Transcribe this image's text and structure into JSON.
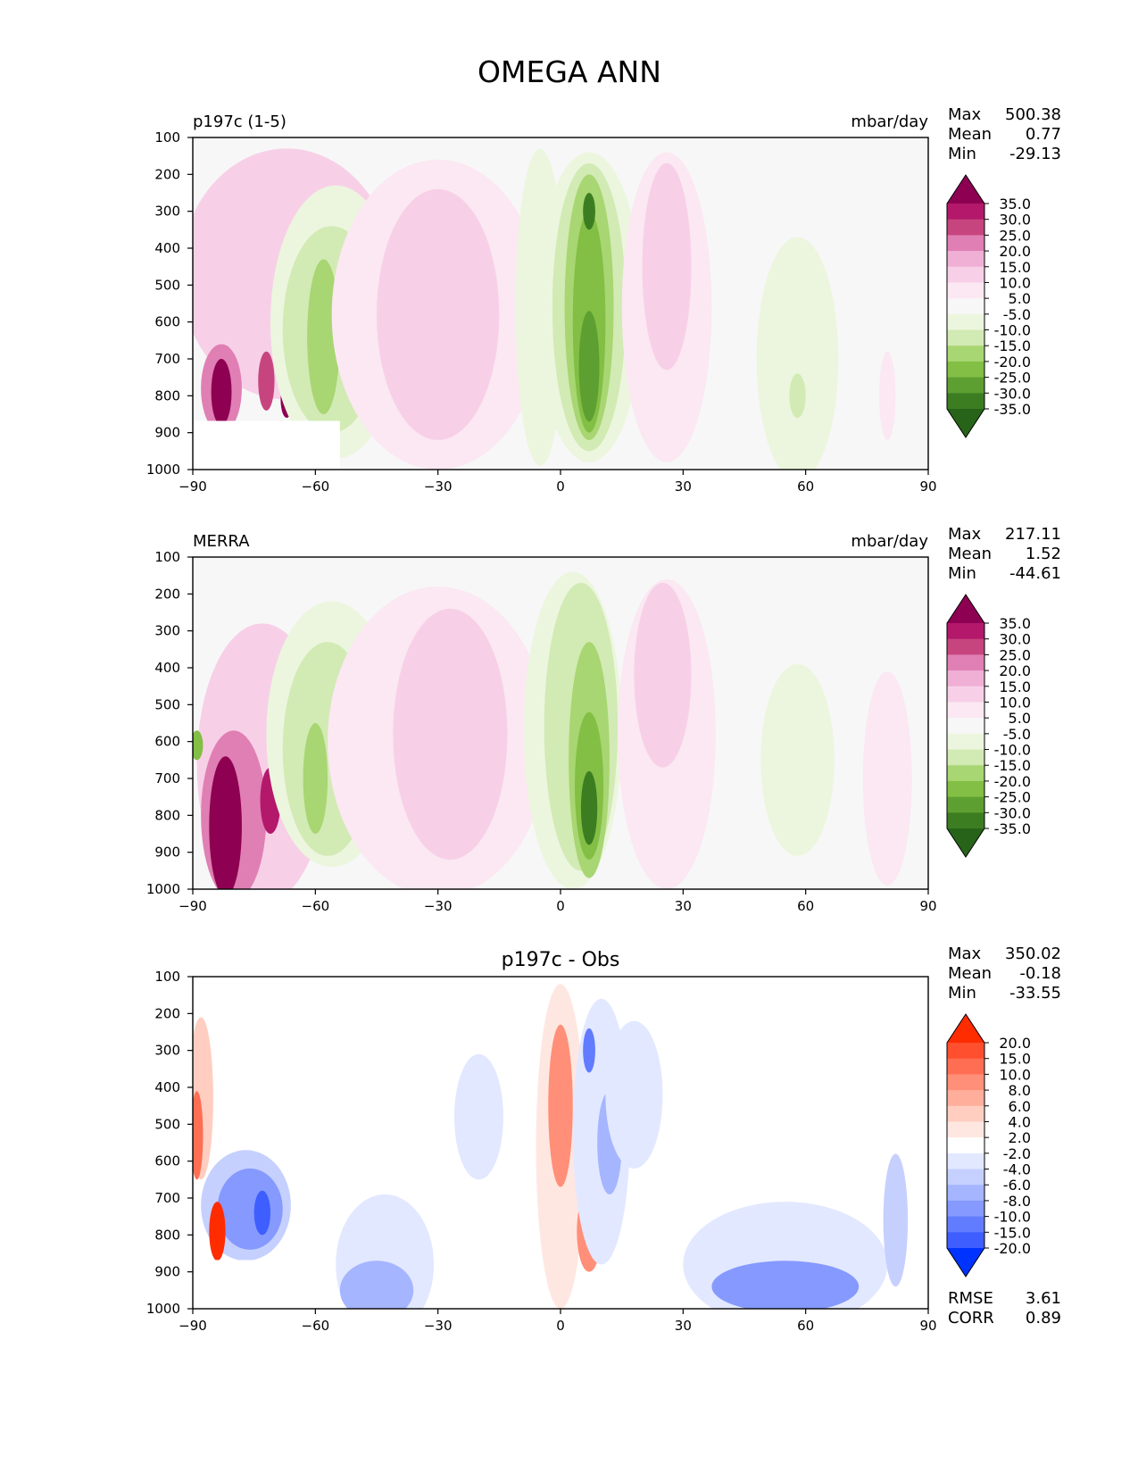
{
  "title": "OMEGA ANN",
  "chart_data": [
    {
      "type": "heatmap",
      "panel_label": "p197c (1-5)",
      "units": "mbar/day",
      "xlim": [
        -90,
        90
      ],
      "ylim": [
        1000,
        100
      ],
      "xticks": [
        -90,
        -60,
        -30,
        0,
        30,
        60,
        90
      ],
      "xtick_labels": [
        "−90",
        "−60",
        "−30",
        "0",
        "30",
        "60",
        "90"
      ],
      "yticks": [
        100,
        200,
        300,
        400,
        500,
        600,
        700,
        800,
        900,
        1000
      ],
      "ytick_labels": [
        "100",
        "200",
        "300",
        "400",
        "500",
        "600",
        "700",
        "800",
        "900",
        "1000"
      ],
      "stats": {
        "max_label": "Max",
        "max": "500.38",
        "mean_label": "Mean",
        "mean": "0.77",
        "min_label": "Min",
        "min": "-29.13"
      },
      "colorbar": {
        "labels": [
          "35.0",
          "30.0",
          "25.0",
          "20.0",
          "15.0",
          "10.0",
          "5.0",
          "-5.0",
          "-10.0",
          "-15.0",
          "-20.0",
          "-25.0",
          "-30.0",
          "-35.0"
        ],
        "colors": [
          "#8e0152",
          "#b3186b",
          "#c7457e",
          "#e07fb3",
          "#f0b0d5",
          "#f7d0e8",
          "#fbe8f2",
          "#f7f7f7",
          "#ecf6de",
          "#d2eab4",
          "#a8d672",
          "#82bf44",
          "#5e9f31",
          "#3d7d22",
          "#276419"
        ]
      },
      "blobs": [
        {
          "lon": -67,
          "p": 470,
          "rx": 26,
          "ry": 340,
          "c": "#f7d0e8"
        },
        {
          "lon": -83,
          "p": 780,
          "rx": 5,
          "ry": 120,
          "c": "#e07fb3"
        },
        {
          "lon": -83,
          "p": 790,
          "rx": 2.5,
          "ry": 90,
          "c": "#8e0152"
        },
        {
          "lon": -72,
          "p": 760,
          "rx": 2,
          "ry": 80,
          "c": "#c7457e"
        },
        {
          "lon": -67,
          "p": 810,
          "rx": 1.5,
          "ry": 50,
          "c": "#8e0152"
        },
        {
          "lon": -55,
          "p": 600,
          "rx": 16,
          "ry": 370,
          "c": "#ecf6de"
        },
        {
          "lon": -56,
          "p": 620,
          "rx": 12,
          "ry": 280,
          "c": "#d2eab4"
        },
        {
          "lon": -58,
          "p": 640,
          "rx": 4,
          "ry": 210,
          "c": "#a8d672"
        },
        {
          "lon": -30,
          "p": 580,
          "rx": 26,
          "ry": 420,
          "c": "#fbe8f2"
        },
        {
          "lon": -30,
          "p": 580,
          "rx": 15,
          "ry": 340,
          "c": "#f7d0e8"
        },
        {
          "lon": -5,
          "p": 560,
          "rx": 6,
          "ry": 430,
          "c": "#ecf6de"
        },
        {
          "lon": 7,
          "p": 560,
          "rx": 13,
          "ry": 420,
          "c": "#ecf6de"
        },
        {
          "lon": 7,
          "p": 560,
          "rx": 9,
          "ry": 390,
          "c": "#d2eab4"
        },
        {
          "lon": 7,
          "p": 560,
          "rx": 6,
          "ry": 360,
          "c": "#a8d672"
        },
        {
          "lon": 7,
          "p": 600,
          "rx": 4,
          "ry": 300,
          "c": "#82bf44"
        },
        {
          "lon": 7,
          "p": 720,
          "rx": 2.5,
          "ry": 150,
          "c": "#5e9f31"
        },
        {
          "lon": 7,
          "p": 300,
          "rx": 1.5,
          "ry": 50,
          "c": "#3d7d22"
        },
        {
          "lon": 26,
          "p": 560,
          "rx": 11,
          "ry": 420,
          "c": "#fbe8f2"
        },
        {
          "lon": 26,
          "p": 450,
          "rx": 6,
          "ry": 280,
          "c": "#f7d0e8"
        },
        {
          "lon": 58,
          "p": 700,
          "rx": 10,
          "ry": 330,
          "c": "#ecf6de"
        },
        {
          "lon": 58,
          "p": 800,
          "rx": 2,
          "ry": 60,
          "c": "#d2eab4"
        },
        {
          "lon": 80,
          "p": 800,
          "rx": 2,
          "ry": 120,
          "c": "#fbe8f2"
        }
      ],
      "mask": {
        "lon": [
          -90,
          -54
        ],
        "p": [
          868,
          1000
        ],
        "c": "#ffffff"
      }
    },
    {
      "type": "heatmap",
      "panel_label": "MERRA",
      "units": "mbar/day",
      "xlim": [
        -90,
        90
      ],
      "ylim": [
        1000,
        100
      ],
      "xticks": [
        -90,
        -60,
        -30,
        0,
        30,
        60,
        90
      ],
      "xtick_labels": [
        "−90",
        "−60",
        "−30",
        "0",
        "30",
        "60",
        "90"
      ],
      "yticks": [
        100,
        200,
        300,
        400,
        500,
        600,
        700,
        800,
        900,
        1000
      ],
      "ytick_labels": [
        "100",
        "200",
        "300",
        "400",
        "500",
        "600",
        "700",
        "800",
        "900",
        "1000"
      ],
      "stats": {
        "max_label": "Max",
        "max": "217.11",
        "mean_label": "Mean",
        "mean": "1.52",
        "min_label": "Min",
        "min": "-44.61"
      },
      "colorbar": {
        "labels": [
          "35.0",
          "30.0",
          "25.0",
          "20.0",
          "15.0",
          "10.0",
          "5.0",
          "-5.0",
          "-10.0",
          "-15.0",
          "-20.0",
          "-25.0",
          "-30.0",
          "-35.0"
        ],
        "colors": [
          "#8e0152",
          "#b3186b",
          "#c7457e",
          "#e07fb3",
          "#f0b0d5",
          "#f7d0e8",
          "#fbe8f2",
          "#f7f7f7",
          "#ecf6de",
          "#d2eab4",
          "#a8d672",
          "#82bf44",
          "#5e9f31",
          "#3d7d22",
          "#276419"
        ]
      },
      "blobs": [
        {
          "lon": -73,
          "p": 660,
          "rx": 16,
          "ry": 380,
          "c": "#f7d0e8"
        },
        {
          "lon": -80,
          "p": 800,
          "rx": 8,
          "ry": 230,
          "c": "#e07fb3"
        },
        {
          "lon": -82,
          "p": 830,
          "rx": 4,
          "ry": 190,
          "c": "#8e0152"
        },
        {
          "lon": -71,
          "p": 760,
          "rx": 2.5,
          "ry": 90,
          "c": "#b3186b"
        },
        {
          "lon": -89,
          "p": 610,
          "rx": 1.5,
          "ry": 40,
          "c": "#82bf44"
        },
        {
          "lon": -56,
          "p": 580,
          "rx": 16,
          "ry": 360,
          "c": "#ecf6de"
        },
        {
          "lon": -57,
          "p": 620,
          "rx": 11,
          "ry": 290,
          "c": "#d2eab4"
        },
        {
          "lon": -60,
          "p": 700,
          "rx": 3,
          "ry": 150,
          "c": "#a8d672"
        },
        {
          "lon": -30,
          "p": 600,
          "rx": 27,
          "ry": 420,
          "c": "#fbe8f2"
        },
        {
          "lon": -27,
          "p": 580,
          "rx": 14,
          "ry": 340,
          "c": "#f7d0e8"
        },
        {
          "lon": 3,
          "p": 570,
          "rx": 12,
          "ry": 430,
          "c": "#ecf6de"
        },
        {
          "lon": 5,
          "p": 560,
          "rx": 9,
          "ry": 390,
          "c": "#d2eab4"
        },
        {
          "lon": 7,
          "p": 650,
          "rx": 5,
          "ry": 320,
          "c": "#a8d672"
        },
        {
          "lon": 7,
          "p": 720,
          "rx": 3.5,
          "ry": 200,
          "c": "#82bf44"
        },
        {
          "lon": 7,
          "p": 780,
          "rx": 2,
          "ry": 100,
          "c": "#3d7d22"
        },
        {
          "lon": 26,
          "p": 580,
          "rx": 12,
          "ry": 420,
          "c": "#fbe8f2"
        },
        {
          "lon": 25,
          "p": 420,
          "rx": 7,
          "ry": 250,
          "c": "#f7d0e8"
        },
        {
          "lon": 58,
          "p": 650,
          "rx": 9,
          "ry": 260,
          "c": "#ecf6de"
        },
        {
          "lon": 80,
          "p": 700,
          "rx": 6,
          "ry": 290,
          "c": "#fbe8f2"
        }
      ],
      "mask": null
    },
    {
      "type": "heatmap",
      "panel_label": "p197c - Obs",
      "units": "",
      "xlim": [
        -90,
        90
      ],
      "ylim": [
        1000,
        100
      ],
      "xticks": [
        -90,
        -60,
        -30,
        0,
        30,
        60,
        90
      ],
      "xtick_labels": [
        "−90",
        "−60",
        "−30",
        "0",
        "30",
        "60",
        "90"
      ],
      "yticks": [
        100,
        200,
        300,
        400,
        500,
        600,
        700,
        800,
        900,
        1000
      ],
      "ytick_labels": [
        "100",
        "200",
        "300",
        "400",
        "500",
        "600",
        "700",
        "800",
        "900",
        "1000"
      ],
      "stats": {
        "max_label": "Max",
        "max": "350.02",
        "mean_label": "Mean",
        "mean": "-0.18",
        "min_label": "Min",
        "min": "-33.55"
      },
      "extra_stats": {
        "rmse_label": "RMSE",
        "rmse": "3.61",
        "corr_label": "CORR",
        "corr": "0.89"
      },
      "colorbar": {
        "labels": [
          "20.0",
          "15.0",
          "10.0",
          "8.0",
          "6.0",
          "4.0",
          "2.0",
          "-2.0",
          "-4.0",
          "-6.0",
          "-8.0",
          "-10.0",
          "-15.0",
          "-20.0"
        ],
        "colors": [
          "#ff2c00",
          "#ff4f2e",
          "#ff6e52",
          "#ff8f78",
          "#ffae9c",
          "#ffcec1",
          "#ffe7e1",
          "#ffffff",
          "#e2e8ff",
          "#c5d0ff",
          "#a5b5ff",
          "#8599ff",
          "#627cff",
          "#3e5eff",
          "#0033ff"
        ]
      },
      "blobs": [
        {
          "lon": -88,
          "p": 430,
          "rx": 3,
          "ry": 220,
          "c": "#ffcec1"
        },
        {
          "lon": -89,
          "p": 530,
          "rx": 1.5,
          "ry": 120,
          "c": "#ff6e52"
        },
        {
          "lon": -77,
          "p": 720,
          "rx": 11,
          "ry": 150,
          "c": "#c5d0ff"
        },
        {
          "lon": -76,
          "p": 730,
          "rx": 8,
          "ry": 110,
          "c": "#8599ff"
        },
        {
          "lon": -73,
          "p": 740,
          "rx": 2,
          "ry": 60,
          "c": "#3e5eff"
        },
        {
          "lon": -84,
          "p": 790,
          "rx": 2,
          "ry": 80,
          "c": "#ff2c00"
        },
        {
          "lon": -43,
          "p": 880,
          "rx": 12,
          "ry": 190,
          "c": "#e2e8ff"
        },
        {
          "lon": -45,
          "p": 950,
          "rx": 9,
          "ry": 80,
          "c": "#a5b5ff"
        },
        {
          "lon": -20,
          "p": 480,
          "rx": 6,
          "ry": 170,
          "c": "#e2e8ff"
        },
        {
          "lon": 0,
          "p": 560,
          "rx": 6,
          "ry": 440,
          "c": "#ffe7e1"
        },
        {
          "lon": 0,
          "p": 450,
          "rx": 3,
          "ry": 220,
          "c": "#ff8f78"
        },
        {
          "lon": 7,
          "p": 790,
          "rx": 3,
          "ry": 110,
          "c": "#ff8f78"
        },
        {
          "lon": 10,
          "p": 520,
          "rx": 7,
          "ry": 360,
          "c": "#e2e8ff"
        },
        {
          "lon": 12,
          "p": 550,
          "rx": 3,
          "ry": 140,
          "c": "#a5b5ff"
        },
        {
          "lon": 7,
          "p": 300,
          "rx": 1.5,
          "ry": 60,
          "c": "#627cff"
        },
        {
          "lon": 18,
          "p": 420,
          "rx": 7,
          "ry": 200,
          "c": "#e2e8ff"
        },
        {
          "lon": 55,
          "p": 880,
          "rx": 25,
          "ry": 170,
          "c": "#e2e8ff"
        },
        {
          "lon": 55,
          "p": 940,
          "rx": 18,
          "ry": 70,
          "c": "#8599ff"
        },
        {
          "lon": 82,
          "p": 760,
          "rx": 3,
          "ry": 180,
          "c": "#c5d0ff"
        }
      ],
      "mask": {
        "lon": [
          -85,
          -64
        ],
        "p": [
          868,
          1000
        ],
        "c": "#ffffff"
      }
    }
  ]
}
